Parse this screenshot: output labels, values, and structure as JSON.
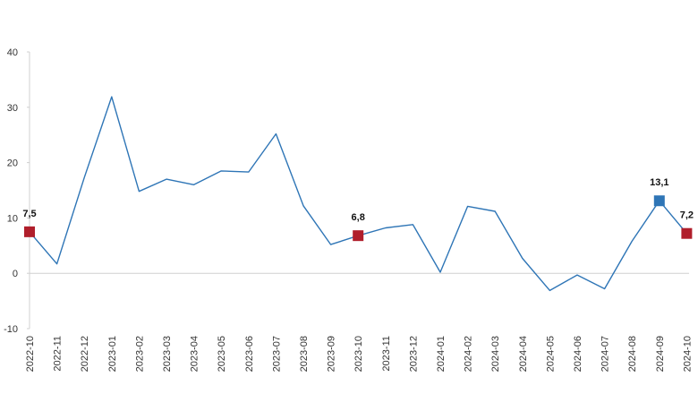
{
  "chart_data": {
    "type": "line",
    "title": "",
    "xlabel": "",
    "ylabel": "",
    "ylim": [
      -10,
      40
    ],
    "yticks": [
      -10,
      0,
      10,
      20,
      30,
      40
    ],
    "grid": false,
    "categories": [
      "2022-10",
      "2022-11",
      "2022-12",
      "2023-01",
      "2023-02",
      "2023-03",
      "2023-04",
      "2023-05",
      "2023-06",
      "2023-07",
      "2023-08",
      "2023-09",
      "2023-10",
      "2023-11",
      "2023-12",
      "2024-01",
      "2024-02",
      "2024-03",
      "2024-04",
      "2024-05",
      "2024-06",
      "2024-07",
      "2024-08",
      "2024-09",
      "2024-10"
    ],
    "series": [
      {
        "values": [
          7.5,
          1.7,
          17.3,
          31.9,
          14.8,
          17.0,
          16.0,
          18.5,
          18.3,
          25.2,
          12.2,
          5.2,
          6.8,
          8.2,
          8.8,
          0.2,
          12.1,
          11.2,
          2.7,
          -3.1,
          -0.3,
          -2.8,
          5.8,
          13.1,
          7.2
        ]
      }
    ],
    "line_color": "#2e75b6",
    "highlighted_points": [
      {
        "category": "2022-10",
        "label": "7,5",
        "color": "#b01e2b"
      },
      {
        "category": "2023-10",
        "label": "6,8",
        "color": "#b01e2b"
      },
      {
        "category": "2024-09",
        "label": "13,1",
        "color": "#2e75b6"
      },
      {
        "category": "2024-10",
        "label": "7,2",
        "color": "#b01e2b"
      }
    ]
  }
}
